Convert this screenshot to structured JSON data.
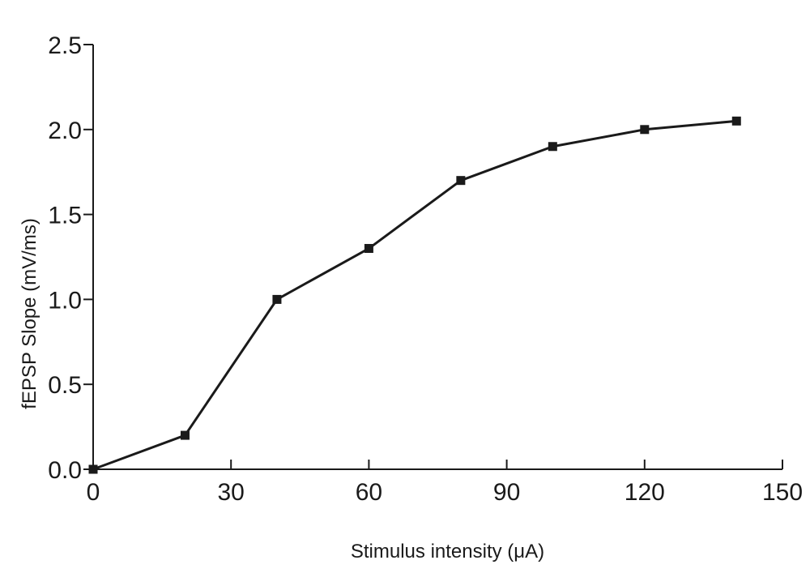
{
  "chart_data": {
    "type": "line",
    "title": "",
    "xlabel": "Stimulus intensity (μA)",
    "ylabel": "fEPSP Slope (mV/ms)",
    "xlim": [
      0,
      150
    ],
    "ylim": [
      0,
      2.5
    ],
    "xticks": [
      0,
      30,
      60,
      90,
      120,
      150
    ],
    "xtick_labels": [
      "0",
      "30",
      "60",
      "90",
      "120",
      "150"
    ],
    "yticks": [
      0,
      0.5,
      1.0,
      1.5,
      2.0,
      2.5
    ],
    "ytick_labels": [
      "0.0",
      "0.5",
      "1.0",
      "1.5",
      "2.0",
      "2.5"
    ],
    "grid": false,
    "legend": "none",
    "marker": "square",
    "series_color": "#1a1a1a",
    "series": [
      {
        "x": [
          0,
          20,
          40,
          60,
          80,
          100,
          120,
          140
        ],
        "values": [
          0.0,
          0.2,
          1.0,
          1.3,
          1.7,
          1.9,
          2.0,
          2.05
        ]
      }
    ]
  }
}
